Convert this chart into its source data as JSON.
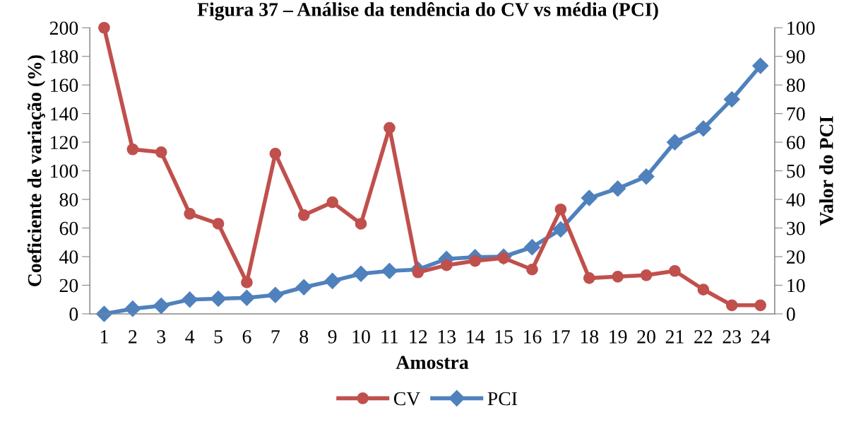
{
  "chart_data": {
    "type": "line",
    "title": "Figura 37 – Análise da tendência do CV vs média (PCI)",
    "xlabel": "Amostra",
    "ylabel": "Coeficiente de variação (%)",
    "y2label": "Valor do PCI",
    "categories": [
      "1",
      "2",
      "3",
      "4",
      "5",
      "6",
      "7",
      "8",
      "9",
      "10",
      "11",
      "12",
      "13",
      "14",
      "15",
      "16",
      "17",
      "18",
      "19",
      "20",
      "21",
      "22",
      "23",
      "24"
    ],
    "series": [
      {
        "name": "CV",
        "color": "#c0504d",
        "marker": "circle",
        "values": [
          200,
          115,
          113,
          70,
          63,
          22,
          112,
          69,
          78,
          63,
          130,
          29,
          34,
          37,
          39,
          31,
          73,
          25,
          26,
          27,
          30,
          17,
          6,
          6
        ]
      },
      {
        "name": "PCI",
        "color": "#4f81bd",
        "marker": "diamond",
        "axis": "y2",
        "values": [
          0,
          1.8,
          2.8,
          5,
          5.3,
          5.6,
          6.6,
          9.3,
          11.5,
          14,
          15,
          15.5,
          19.2,
          19.8,
          20,
          23.3,
          29.5,
          40.5,
          43.8,
          48,
          60,
          64.8,
          75,
          86.7
        ]
      }
    ],
    "ylim": [
      0,
      200
    ],
    "yticks": [
      0,
      20,
      40,
      60,
      80,
      100,
      120,
      140,
      160,
      180,
      200
    ],
    "y2lim": [
      0,
      100
    ],
    "y2ticks": [
      0,
      10,
      20,
      30,
      40,
      50,
      60,
      70,
      80,
      90,
      100
    ],
    "grid": false,
    "legend": "bottom",
    "line_style": "solid"
  }
}
